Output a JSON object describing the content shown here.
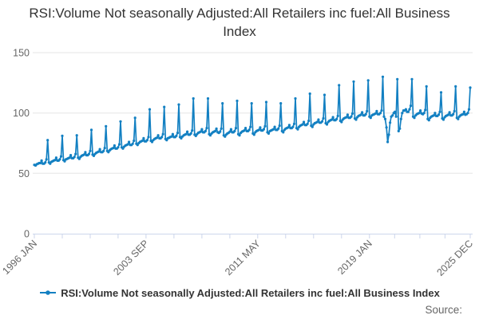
{
  "title": "RSI:Volume Not seasonally Adjusted:All Retailers inc fuel:All Business Index",
  "legend": {
    "label": "RSI:Volume Not seasonally Adjusted:All Retailers inc fuel:All Business Index"
  },
  "source_label": "Source:",
  "colors": {
    "series": "#1380c2",
    "axis_line": "#ccd6eb",
    "gridline": "#e6e6e6",
    "tick_label": "#666666",
    "title": "#333333"
  },
  "chart_data": {
    "type": "line",
    "title": "RSI:Volume Not seasonally Adjusted:All Retailers inc fuel:All Business Index",
    "xlabel": "",
    "ylabel": "",
    "ylim": [
      0,
      150
    ],
    "y_ticks": [
      0,
      50,
      100,
      150
    ],
    "grid": true,
    "legend_position": "bottom",
    "x_unit": "month",
    "x_range": [
      "1996 JAN",
      "2025 DEC"
    ],
    "x_tick_labels": [
      {
        "month_index": 0,
        "label": "1996 JAN"
      },
      {
        "month_index": 92,
        "label": "2003 SEP"
      },
      {
        "month_index": 184,
        "label": "2011 MAY"
      },
      {
        "month_index": 276,
        "label": "2019 JAN"
      },
      {
        "month_index": 359,
        "label": "2025 DEC"
      }
    ],
    "minor_ticks_per_interval": 4,
    "series": [
      {
        "name": "RSI:Volume Not seasonally Adjusted:All Retailers inc fuel:All Business Index",
        "color": "#1380c2",
        "marker": "circle",
        "values": [
          57,
          56.5,
          57.5,
          58,
          58.5,
          58.5,
          60.5,
          58,
          58,
          59,
          61.5,
          77.5,
          59,
          58,
          59.5,
          60,
          60.5,
          61,
          63,
          60.5,
          60.5,
          61.5,
          64,
          81,
          61,
          60,
          61.5,
          62,
          62.5,
          63,
          65,
          62.5,
          62.5,
          63.5,
          66,
          81.5,
          63,
          62,
          63.5,
          64.5,
          65,
          65.5,
          67.5,
          65,
          65,
          66,
          68.5,
          86,
          65.5,
          64.5,
          66,
          67,
          67.5,
          68,
          70,
          67.5,
          67.5,
          68.5,
          71,
          89,
          68.5,
          67.5,
          69,
          70,
          70.5,
          71,
          73,
          70.5,
          70.5,
          71.5,
          74,
          93,
          71.5,
          70.5,
          72,
          73,
          73.5,
          74,
          76,
          73.5,
          73.5,
          74.5,
          77,
          96,
          74.5,
          73.5,
          75,
          76,
          76.5,
          77,
          79,
          76.5,
          76.5,
          77.5,
          80,
          103,
          77,
          76,
          77.5,
          78.5,
          79,
          79.5,
          81.5,
          79,
          79,
          80,
          82.5,
          105,
          78.5,
          77.5,
          79,
          79.5,
          80,
          80.5,
          82.5,
          80,
          80,
          81,
          83.5,
          107,
          80,
          79,
          80.5,
          81.5,
          82,
          82.5,
          84.5,
          82,
          82,
          83,
          85.5,
          112,
          82,
          81,
          82.5,
          83.5,
          84,
          84.5,
          86.5,
          84,
          84,
          85,
          87.5,
          112,
          82.5,
          81.5,
          83,
          84,
          84.5,
          85,
          87,
          84,
          83.5,
          84.5,
          87,
          108,
          81.5,
          80.5,
          82,
          83,
          83.5,
          84.5,
          86.5,
          84,
          84,
          85,
          87.5,
          110,
          82.5,
          81.5,
          83.5,
          84.5,
          85,
          85.5,
          87.5,
          85,
          85,
          86,
          88.5,
          108,
          83,
          82,
          84,
          85,
          85.5,
          86,
          88,
          85.5,
          85.5,
          86.5,
          89,
          109,
          84,
          83,
          85,
          85.5,
          86,
          86.5,
          88.5,
          86,
          86,
          87,
          89.5,
          108,
          85,
          84,
          86,
          87,
          87.5,
          88,
          90,
          87.5,
          87.5,
          88.5,
          91,
          112,
          87.5,
          86.5,
          88.5,
          89.5,
          90,
          90.5,
          92.5,
          90,
          90,
          91,
          93.5,
          116,
          89.5,
          88.5,
          90.5,
          91.5,
          92,
          92.5,
          94.5,
          92,
          92,
          93,
          95.5,
          115,
          91.5,
          90.5,
          92.5,
          93.5,
          94,
          94.5,
          96.5,
          94,
          94,
          95,
          97.5,
          123,
          93.5,
          92.5,
          94.5,
          95.5,
          96,
          96.5,
          98.5,
          96,
          96,
          97,
          99.5,
          126,
          95.5,
          94.5,
          96.5,
          97.5,
          98,
          98.5,
          100.5,
          98,
          98,
          99,
          101.5,
          127,
          97,
          96,
          98,
          98.5,
          99,
          99.5,
          101.5,
          99,
          99,
          100,
          102,
          130,
          97,
          95,
          88,
          76,
          82,
          92,
          97,
          98,
          100,
          101,
          97,
          128,
          85,
          87,
          95,
          100,
          102,
          102,
          103,
          101,
          101,
          103,
          106,
          128,
          97,
          96,
          98,
          99,
          99.5,
          100,
          102,
          99.5,
          99,
          100,
          102.5,
          122,
          95,
          94,
          96,
          97,
          97.5,
          98,
          100,
          97.5,
          97.5,
          98.5,
          101,
          117,
          95.5,
          94.5,
          96.5,
          97.5,
          98,
          98.5,
          100.5,
          98,
          98,
          99,
          101.5,
          122,
          96,
          95,
          97,
          98,
          98.5,
          99,
          101,
          98.5,
          99,
          100,
          103,
          121
        ]
      }
    ]
  }
}
